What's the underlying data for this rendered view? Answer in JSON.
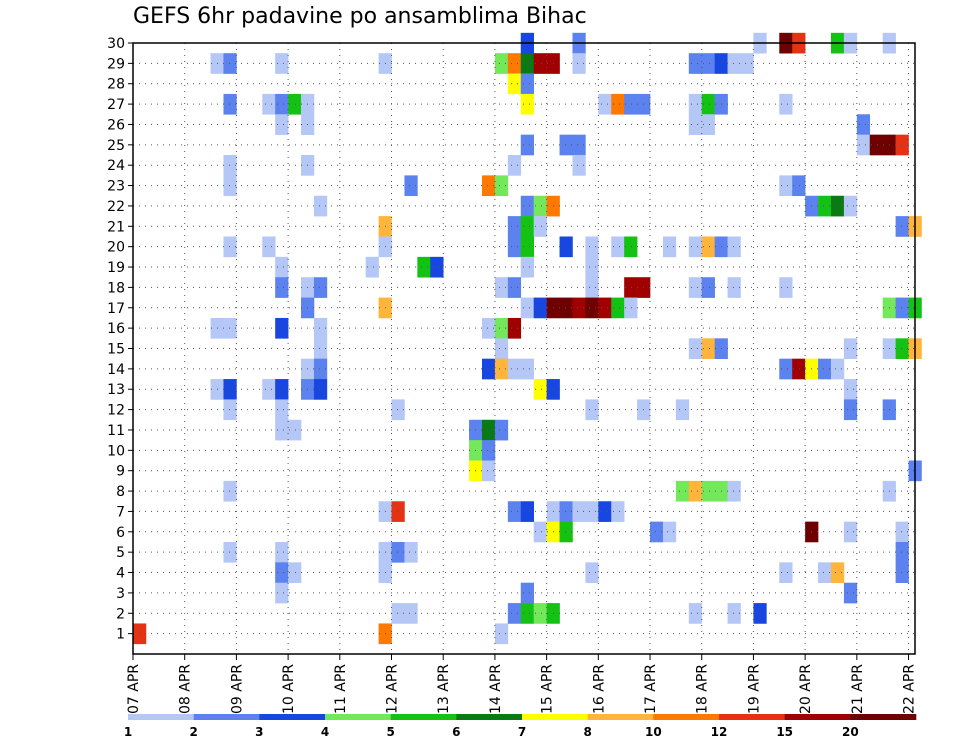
{
  "chart_data": {
    "type": "heatmap",
    "title": "GEFS 6hr padavine po ansamblima Bihac",
    "xlabel": "",
    "ylabel": "",
    "x_ticks": [
      "07 APR",
      "08 APR",
      "09 APR",
      "10 APR",
      "11 APR",
      "12 APR",
      "13 APR",
      "14 APR",
      "15 APR",
      "16 APR",
      "17 APR",
      "18 APR",
      "19 APR",
      "20 APR",
      "21 APR",
      "22 APR"
    ],
    "y_ticks": [
      1,
      2,
      3,
      4,
      5,
      6,
      7,
      8,
      9,
      10,
      11,
      12,
      13,
      14,
      15,
      16,
      17,
      18,
      19,
      20,
      21,
      22,
      23,
      24,
      25,
      26,
      27,
      28,
      29,
      30
    ],
    "x_range": [
      0,
      60
    ],
    "y_range": [
      0,
      30
    ],
    "grid": true,
    "steps_per_day": 4,
    "colorbar": {
      "labels": [
        "1",
        "2",
        "3",
        "4",
        "5",
        "6",
        "7",
        "8",
        "10",
        "12",
        "15",
        "20"
      ],
      "colors": [
        "#b4c7f7",
        "#5b82ef",
        "#1846e0",
        "#72e85a",
        "#14c214",
        "#0a7a14",
        "#ffff00",
        "#ffb43c",
        "#ff7800",
        "#e63214",
        "#a00000",
        "#6e0000"
      ]
    },
    "cells": [
      [
        30,
        30,
        3
      ],
      [
        30,
        34,
        2
      ],
      [
        30,
        48,
        1
      ],
      [
        30,
        50,
        12
      ],
      [
        30,
        51,
        10
      ],
      [
        30,
        54,
        5
      ],
      [
        30,
        55,
        1
      ],
      [
        30,
        58,
        1
      ],
      [
        29,
        6,
        1
      ],
      [
        29,
        7,
        2
      ],
      [
        29,
        11,
        1
      ],
      [
        29,
        19,
        1
      ],
      [
        29,
        28,
        4
      ],
      [
        29,
        29,
        9
      ],
      [
        29,
        30,
        6
      ],
      [
        29,
        31,
        11
      ],
      [
        29,
        32,
        11
      ],
      [
        29,
        34,
        1
      ],
      [
        29,
        43,
        2
      ],
      [
        29,
        44,
        2
      ],
      [
        29,
        45,
        3
      ],
      [
        29,
        46,
        1
      ],
      [
        29,
        47,
        1
      ],
      [
        28,
        29,
        7
      ],
      [
        28,
        30,
        2
      ],
      [
        27,
        7,
        2
      ],
      [
        27,
        10,
        1
      ],
      [
        27,
        11,
        2
      ],
      [
        27,
        12,
        5
      ],
      [
        27,
        13,
        1
      ],
      [
        27,
        30,
        7
      ],
      [
        27,
        36,
        1
      ],
      [
        27,
        37,
        9
      ],
      [
        27,
        38,
        2
      ],
      [
        27,
        39,
        2
      ],
      [
        27,
        43,
        1
      ],
      [
        27,
        44,
        5
      ],
      [
        27,
        45,
        2
      ],
      [
        27,
        50,
        1
      ],
      [
        26,
        11,
        1
      ],
      [
        26,
        13,
        1
      ],
      [
        26,
        43,
        1
      ],
      [
        26,
        44,
        1
      ],
      [
        26,
        56,
        2
      ],
      [
        25,
        30,
        2
      ],
      [
        25,
        33,
        2
      ],
      [
        25,
        34,
        2
      ],
      [
        25,
        56,
        1
      ],
      [
        25,
        57,
        12
      ],
      [
        25,
        58,
        12
      ],
      [
        25,
        59,
        10
      ],
      [
        24,
        7,
        1
      ],
      [
        24,
        13,
        1
      ],
      [
        24,
        29,
        1
      ],
      [
        24,
        34,
        1
      ],
      [
        23,
        7,
        1
      ],
      [
        23,
        21,
        2
      ],
      [
        23,
        27,
        9
      ],
      [
        23,
        28,
        4
      ],
      [
        23,
        50,
        1
      ],
      [
        23,
        51,
        2
      ],
      [
        22,
        14,
        1
      ],
      [
        22,
        30,
        2
      ],
      [
        22,
        31,
        4
      ],
      [
        22,
        32,
        9
      ],
      [
        22,
        52,
        2
      ],
      [
        22,
        53,
        5
      ],
      [
        22,
        54,
        6
      ],
      [
        22,
        55,
        1
      ],
      [
        21,
        19,
        8
      ],
      [
        21,
        29,
        2
      ],
      [
        21,
        30,
        5
      ],
      [
        21,
        31,
        1
      ],
      [
        21,
        59,
        2
      ],
      [
        21,
        60,
        8
      ],
      [
        20,
        7,
        1
      ],
      [
        20,
        10,
        1
      ],
      [
        20,
        19,
        1
      ],
      [
        20,
        29,
        2
      ],
      [
        20,
        30,
        5
      ],
      [
        20,
        33,
        3
      ],
      [
        20,
        35,
        1
      ],
      [
        20,
        37,
        1
      ],
      [
        20,
        38,
        5
      ],
      [
        20,
        41,
        1
      ],
      [
        20,
        43,
        1
      ],
      [
        20,
        44,
        8
      ],
      [
        20,
        45,
        2
      ],
      [
        20,
        46,
        1
      ],
      [
        19,
        11,
        1
      ],
      [
        19,
        18,
        1
      ],
      [
        19,
        22,
        5
      ],
      [
        19,
        23,
        3
      ],
      [
        19,
        30,
        1
      ],
      [
        19,
        35,
        1
      ],
      [
        18,
        11,
        2
      ],
      [
        18,
        13,
        1
      ],
      [
        18,
        14,
        2
      ],
      [
        18,
        28,
        1
      ],
      [
        18,
        29,
        2
      ],
      [
        18,
        35,
        1
      ],
      [
        18,
        38,
        11
      ],
      [
        18,
        39,
        11
      ],
      [
        18,
        43,
        1
      ],
      [
        18,
        44,
        2
      ],
      [
        18,
        46,
        1
      ],
      [
        18,
        50,
        1
      ],
      [
        17,
        13,
        2
      ],
      [
        17,
        19,
        8
      ],
      [
        17,
        30,
        1
      ],
      [
        17,
        31,
        3
      ],
      [
        17,
        32,
        12
      ],
      [
        17,
        33,
        12
      ],
      [
        17,
        34,
        11
      ],
      [
        17,
        35,
        12
      ],
      [
        17,
        36,
        11
      ],
      [
        17,
        37,
        5
      ],
      [
        17,
        38,
        1
      ],
      [
        17,
        58,
        4
      ],
      [
        17,
        59,
        2
      ],
      [
        17,
        60,
        5
      ],
      [
        16,
        6,
        1
      ],
      [
        16,
        7,
        1
      ],
      [
        16,
        11,
        3
      ],
      [
        16,
        14,
        1
      ],
      [
        16,
        27,
        1
      ],
      [
        16,
        28,
        4
      ],
      [
        16,
        29,
        11
      ],
      [
        15,
        14,
        1
      ],
      [
        15,
        28,
        1
      ],
      [
        15,
        43,
        1
      ],
      [
        15,
        44,
        8
      ],
      [
        15,
        45,
        2
      ],
      [
        15,
        55,
        1
      ],
      [
        15,
        58,
        1
      ],
      [
        15,
        59,
        5
      ],
      [
        15,
        60,
        8
      ],
      [
        14,
        13,
        1
      ],
      [
        14,
        14,
        2
      ],
      [
        14,
        27,
        3
      ],
      [
        14,
        28,
        8
      ],
      [
        14,
        29,
        1
      ],
      [
        14,
        30,
        1
      ],
      [
        14,
        50,
        2
      ],
      [
        14,
        51,
        11
      ],
      [
        14,
        52,
        7
      ],
      [
        14,
        53,
        2
      ],
      [
        14,
        54,
        1
      ],
      [
        13,
        6,
        1
      ],
      [
        13,
        7,
        3
      ],
      [
        13,
        10,
        1
      ],
      [
        13,
        11,
        3
      ],
      [
        13,
        13,
        2
      ],
      [
        13,
        14,
        3
      ],
      [
        13,
        31,
        7
      ],
      [
        13,
        32,
        3
      ],
      [
        13,
        55,
        1
      ],
      [
        12,
        7,
        1
      ],
      [
        12,
        11,
        1
      ],
      [
        12,
        20,
        1
      ],
      [
        12,
        35,
        1
      ],
      [
        12,
        39,
        1
      ],
      [
        12,
        42,
        1
      ],
      [
        12,
        55,
        2
      ],
      [
        12,
        58,
        2
      ],
      [
        11,
        11,
        1
      ],
      [
        11,
        12,
        1
      ],
      [
        11,
        26,
        2
      ],
      [
        11,
        27,
        6
      ],
      [
        11,
        28,
        2
      ],
      [
        10,
        26,
        4
      ],
      [
        10,
        27,
        2
      ],
      [
        9,
        26,
        7
      ],
      [
        9,
        27,
        1
      ],
      [
        9,
        60,
        2
      ],
      [
        8,
        7,
        1
      ],
      [
        8,
        42,
        4
      ],
      [
        8,
        43,
        8
      ],
      [
        8,
        44,
        4
      ],
      [
        8,
        45,
        4
      ],
      [
        8,
        46,
        1
      ],
      [
        8,
        58,
        1
      ],
      [
        7,
        19,
        1
      ],
      [
        7,
        20,
        10
      ],
      [
        7,
        29,
        2
      ],
      [
        7,
        30,
        3
      ],
      [
        7,
        32,
        1
      ],
      [
        7,
        33,
        2
      ],
      [
        7,
        34,
        1
      ],
      [
        7,
        35,
        1
      ],
      [
        7,
        36,
        3
      ],
      [
        7,
        37,
        1
      ],
      [
        6,
        31,
        1
      ],
      [
        6,
        32,
        7
      ],
      [
        6,
        33,
        5
      ],
      [
        6,
        40,
        2
      ],
      [
        6,
        41,
        1
      ],
      [
        6,
        52,
        12
      ],
      [
        6,
        55,
        1
      ],
      [
        6,
        59,
        1
      ],
      [
        5,
        7,
        1
      ],
      [
        5,
        11,
        1
      ],
      [
        5,
        19,
        1
      ],
      [
        5,
        20,
        2
      ],
      [
        5,
        21,
        1
      ],
      [
        5,
        59,
        2
      ],
      [
        4,
        11,
        2
      ],
      [
        4,
        12,
        1
      ],
      [
        4,
        19,
        1
      ],
      [
        4,
        35,
        1
      ],
      [
        4,
        50,
        1
      ],
      [
        4,
        53,
        1
      ],
      [
        4,
        54,
        8
      ],
      [
        4,
        59,
        2
      ],
      [
        3,
        11,
        1
      ],
      [
        3,
        30,
        2
      ],
      [
        3,
        55,
        2
      ],
      [
        2,
        20,
        1
      ],
      [
        2,
        21,
        1
      ],
      [
        2,
        29,
        2
      ],
      [
        2,
        30,
        5
      ],
      [
        2,
        31,
        4
      ],
      [
        2,
        32,
        5
      ],
      [
        2,
        43,
        1
      ],
      [
        2,
        46,
        1
      ],
      [
        2,
        48,
        3
      ],
      [
        1,
        28,
        1
      ],
      [
        1,
        19,
        9
      ],
      [
        1,
        0,
        10
      ]
    ]
  }
}
